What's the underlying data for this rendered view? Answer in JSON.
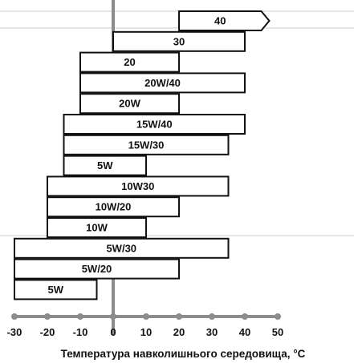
{
  "chart_data": {
    "type": "bar",
    "orientation": "horizontal-range",
    "title": "",
    "xlabel": "Температура навколишнього середовища, °C",
    "xlim": [
      -30,
      50
    ],
    "xticks": [
      "-30",
      "-20",
      "-10",
      "0",
      "10",
      "20",
      "30",
      "40",
      "50"
    ],
    "bars": [
      {
        "label": "40",
        "start": 20,
        "end": 45,
        "arrow": true
      },
      {
        "label": "30",
        "start": 0,
        "end": 40
      },
      {
        "label": "20",
        "start": -10,
        "end": 20
      },
      {
        "label": "20W/40",
        "start": -10,
        "end": 40
      },
      {
        "label": "20W",
        "start": -10,
        "end": 20
      },
      {
        "label": "15W/40",
        "start": -15,
        "end": 40
      },
      {
        "label": "15W/30",
        "start": -15,
        "end": 35
      },
      {
        "label": "5W",
        "start": -15,
        "end": 10
      },
      {
        "label": "10W30",
        "start": -20,
        "end": 35
      },
      {
        "label": "10W/20",
        "start": -20,
        "end": 20
      },
      {
        "label": "10W",
        "start": -20,
        "end": 10
      },
      {
        "label": "5W/30",
        "start": -30,
        "end": 35
      },
      {
        "label": "5W/20",
        "start": -30,
        "end": 20
      },
      {
        "label": "5W",
        "start": -30,
        "end": -5
      }
    ],
    "colors": {
      "bar_fill": "#ffffff",
      "bar_stroke": "#111111",
      "axis": "#8c8c8c",
      "guide": "#e6e6e6"
    }
  }
}
